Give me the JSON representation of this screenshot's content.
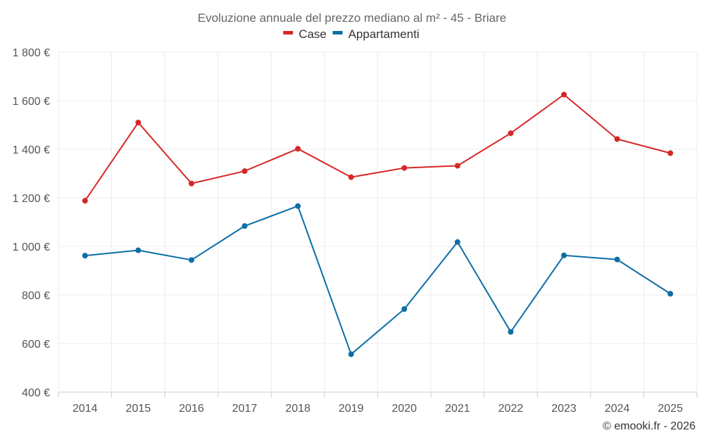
{
  "chart_data": {
    "type": "line",
    "title": "Evoluzione annuale del prezzo mediano al m² - 45 - Briare",
    "categories": [
      "2014",
      "2015",
      "2016",
      "2017",
      "2018",
      "2019",
      "2020",
      "2021",
      "2022",
      "2023",
      "2024",
      "2025"
    ],
    "series": [
      {
        "name": "Case",
        "color": "#d62728",
        "values": [
          1188,
          1510,
          1259,
          1310,
          1402,
          1285,
          1323,
          1332,
          1466,
          1625,
          1442,
          1384
        ]
      },
      {
        "name": "Appartamenti",
        "color": "#0b6ea6",
        "values": [
          962,
          984,
          944,
          1084,
          1166,
          556,
          742,
          1018,
          648,
          963,
          946,
          805
        ]
      }
    ],
    "ylim": [
      400,
      1800
    ],
    "yticks": [
      400,
      600,
      800,
      1000,
      1200,
      1400,
      1600,
      1800
    ],
    "ytick_labels": [
      "400 €",
      "600 €",
      "800 €",
      "1 000 €",
      "1 200 €",
      "1 400 €",
      "1 600 €",
      "1 800 €"
    ],
    "xlabel": "",
    "ylabel": "",
    "grid": true,
    "legend_position": "top-center"
  },
  "credit": "© emooki.fr - 2026"
}
